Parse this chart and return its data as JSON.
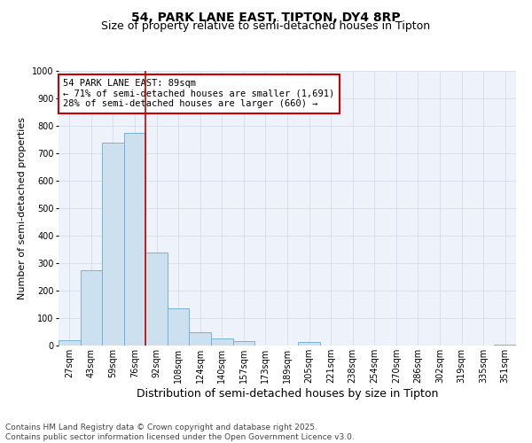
{
  "title": "54, PARK LANE EAST, TIPTON, DY4 8RP",
  "subtitle": "Size of property relative to semi-detached houses in Tipton",
  "xlabel": "Distribution of semi-detached houses by size in Tipton",
  "ylabel": "Number of semi-detached properties",
  "bin_labels": [
    "27sqm",
    "43sqm",
    "59sqm",
    "76sqm",
    "92sqm",
    "108sqm",
    "124sqm",
    "140sqm",
    "157sqm",
    "173sqm",
    "189sqm",
    "205sqm",
    "221sqm",
    "238sqm",
    "254sqm",
    "270sqm",
    "286sqm",
    "302sqm",
    "319sqm",
    "335sqm",
    "351sqm"
  ],
  "bar_values": [
    20,
    275,
    740,
    775,
    340,
    135,
    50,
    25,
    15,
    0,
    0,
    12,
    0,
    0,
    0,
    0,
    0,
    0,
    0,
    0,
    2
  ],
  "bar_color": "#cce0f0",
  "bar_edge_color": "#6aaad4",
  "grid_color": "#d0d8e8",
  "background_color": "#eef3fb",
  "vline_color": "#cc0000",
  "vline_position": 3.5,
  "annotation_text": "54 PARK LANE EAST: 89sqm\n← 71% of semi-detached houses are smaller (1,691)\n28% of semi-detached houses are larger (660) →",
  "annotation_box_color": "#ffffff",
  "annotation_box_edge": "#cc0000",
  "ylim": [
    0,
    1000
  ],
  "yticks": [
    0,
    100,
    200,
    300,
    400,
    500,
    600,
    700,
    800,
    900,
    1000
  ],
  "footnote": "Contains HM Land Registry data © Crown copyright and database right 2025.\nContains public sector information licensed under the Open Government Licence v3.0.",
  "title_fontsize": 10,
  "subtitle_fontsize": 9,
  "xlabel_fontsize": 9,
  "ylabel_fontsize": 8,
  "tick_fontsize": 7,
  "annotation_fontsize": 7.5,
  "footnote_fontsize": 6.5
}
